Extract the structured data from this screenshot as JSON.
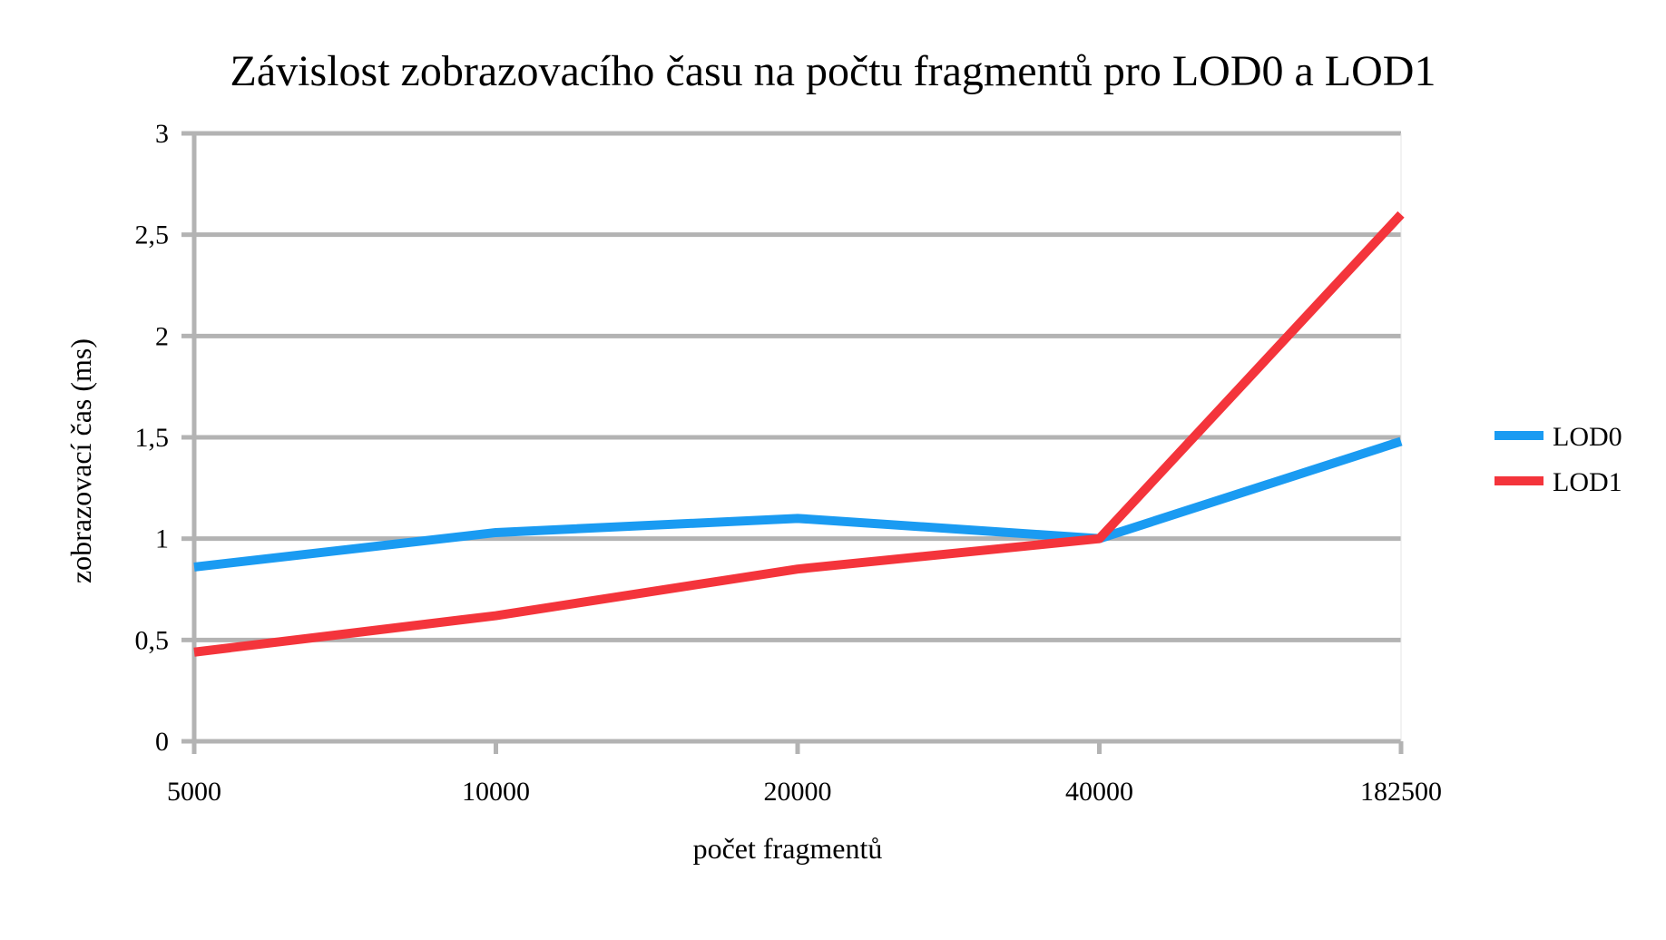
{
  "chart_data": {
    "type": "line",
    "title": "Závislost zobrazovacího času na počtu fragmentů pro LOD0 a LOD1",
    "xlabel": "počet fragmentů",
    "ylabel": "zobrazovací čas (ms)",
    "categories": [
      "5000",
      "10000",
      "20000",
      "40000",
      "182500"
    ],
    "ylim": [
      0,
      3
    ],
    "yticks": [
      "0",
      "0,5",
      "1",
      "1,5",
      "2",
      "2,5",
      "3"
    ],
    "ytick_values": [
      0,
      0.5,
      1,
      1.5,
      2,
      2.5,
      3
    ],
    "grid": true,
    "legend_position": "right",
    "series": [
      {
        "name": "LOD0",
        "color": "#1a9bf2",
        "values": [
          0.86,
          1.03,
          1.1,
          1.0,
          1.48
        ]
      },
      {
        "name": "LOD1",
        "color": "#f4343b",
        "values": [
          0.44,
          0.62,
          0.85,
          1.0,
          2.6
        ]
      }
    ]
  }
}
